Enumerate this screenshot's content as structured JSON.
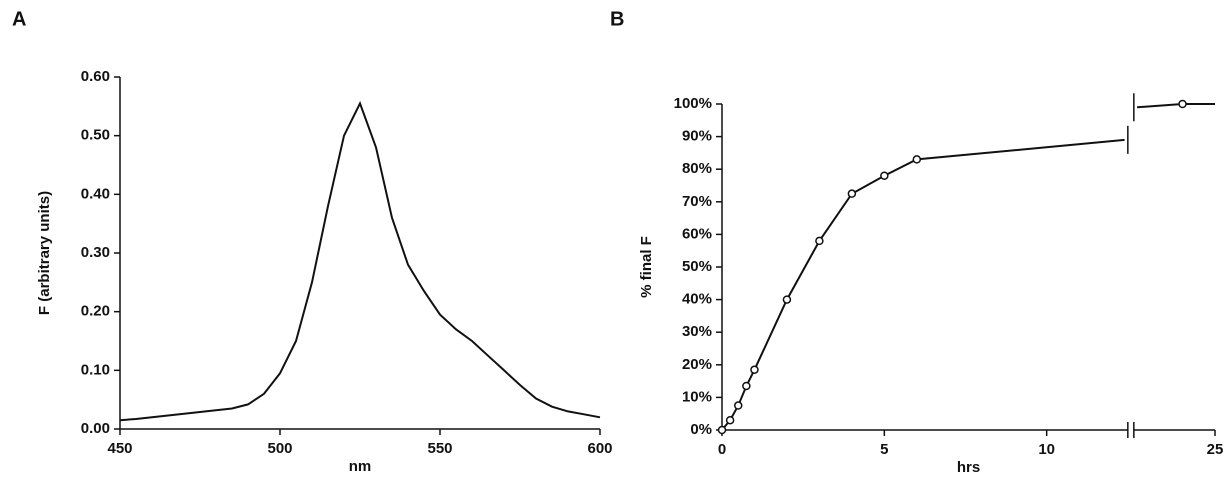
{
  "chart_data": [
    {
      "type": "line",
      "panel": "A",
      "xlabel": "nm",
      "ylabel": "F  (arbitrary  units)",
      "color": "#111111",
      "x": [
        450,
        455,
        460,
        465,
        470,
        475,
        480,
        485,
        490,
        495,
        500,
        505,
        510,
        515,
        520,
        525,
        530,
        535,
        540,
        545,
        550,
        555,
        560,
        565,
        570,
        575,
        580,
        585,
        590,
        595,
        600
      ],
      "values": [
        0.015,
        0.017,
        0.02,
        0.023,
        0.026,
        0.029,
        0.032,
        0.035,
        0.042,
        0.06,
        0.095,
        0.15,
        0.25,
        0.38,
        0.5,
        0.555,
        0.48,
        0.36,
        0.28,
        0.235,
        0.195,
        0.17,
        0.15,
        0.125,
        0.1,
        0.075,
        0.052,
        0.038,
        0.03,
        0.025,
        0.02
      ],
      "xlim": [
        450,
        600
      ],
      "xticks": [
        450,
        500,
        550,
        600
      ],
      "ylim": [
        0,
        0.6
      ],
      "yticks": [
        {
          "value": 0,
          "label": "0.00"
        },
        {
          "value": 0.1,
          "label": "0.10"
        },
        {
          "value": 0.2,
          "label": "0.20"
        },
        {
          "value": 0.3,
          "label": "0.30"
        },
        {
          "value": 0.4,
          "label": "0.40"
        },
        {
          "value": 0.5,
          "label": "0.50"
        },
        {
          "value": 0.6,
          "label": "0.60"
        }
      ]
    },
    {
      "type": "line",
      "panel": "B",
      "xlabel": "hrs",
      "ylabel": "% final F",
      "color": "#111111",
      "x": [
        0,
        0.25,
        0.5,
        0.75,
        1,
        2,
        3,
        4,
        5,
        6,
        12.4,
        22.6,
        24,
        25
      ],
      "values": [
        0,
        3,
        7.5,
        13.5,
        18.5,
        40,
        58,
        72.5,
        78,
        83,
        89,
        99,
        100,
        100
      ],
      "markers": [
        true,
        true,
        true,
        true,
        true,
        true,
        true,
        true,
        true,
        true,
        false,
        false,
        true,
        false
      ],
      "xlim": [
        0,
        25
      ],
      "xbreak": [
        12.5,
        22.5
      ],
      "xticks": [
        0,
        5,
        10,
        25
      ],
      "ylim": [
        0,
        100
      ],
      "yticks": [
        {
          "value": 0,
          "label": "0%"
        },
        {
          "value": 10,
          "label": "10%"
        },
        {
          "value": 20,
          "label": "20%"
        },
        {
          "value": 30,
          "label": "30%"
        },
        {
          "value": 40,
          "label": "40%"
        },
        {
          "value": 50,
          "label": "50%"
        },
        {
          "value": 60,
          "label": "60%"
        },
        {
          "value": 70,
          "label": "70%"
        },
        {
          "value": 80,
          "label": "80%"
        },
        {
          "value": 90,
          "label": "90%"
        },
        {
          "value": 100,
          "label": "100%"
        }
      ]
    }
  ]
}
